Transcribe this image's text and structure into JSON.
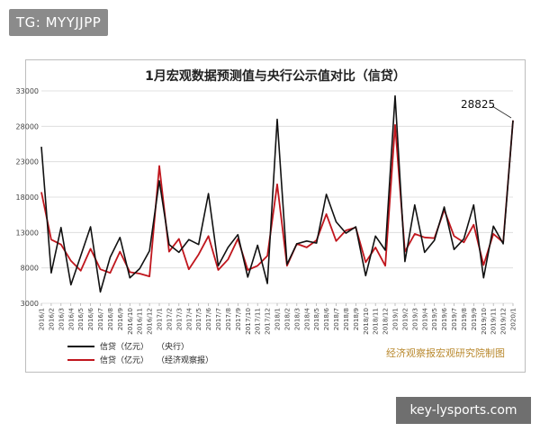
{
  "overlay": {
    "tag": "TG: MYYJJPP",
    "footer_site": "key-lysports.com"
  },
  "chart_data": {
    "type": "line",
    "title": "1月宏观数据预测值与央行公示值对比（信贷）",
    "source_note": "经济观察报宏观研究院制图",
    "annotation": "28825",
    "ylim": [
      3000,
      33000
    ],
    "yticks": [
      3000,
      8000,
      13000,
      18000,
      23000,
      28000,
      33000
    ],
    "xlabel": "",
    "ylabel": "",
    "legend_position": "bottom-left",
    "categories": [
      "2016/1",
      "2016/2",
      "2016/3",
      "2016/4",
      "2016/5",
      "2016/6",
      "2016/7",
      "2016/8",
      "2016/9",
      "2016/10",
      "2016/11",
      "2016/12",
      "2017/1",
      "2017/2",
      "2017/3",
      "2017/4",
      "2017/5",
      "2017/6",
      "2017/7",
      "2017/8",
      "2017/9",
      "2017/10",
      "2017/11",
      "2017/12",
      "2018/1",
      "2018/2",
      "2018/3",
      "2018/4",
      "2018/5",
      "2018/6",
      "2018/7",
      "2018/8",
      "2018/9",
      "2018/10",
      "2018/11",
      "2018/12",
      "2019/1",
      "2019/2",
      "2019/3",
      "2019/4",
      "2019/5",
      "2019/6",
      "2019/7",
      "2019/8",
      "2019/9",
      "2019/10",
      "2019/11",
      "2019/12",
      "2020/1"
    ],
    "series": [
      {
        "name": "信贷（亿元）",
        "source": "（央行）",
        "color": "#111111",
        "values": [
          25100,
          7300,
          13700,
          5600,
          9700,
          13800,
          4600,
          9500,
          12300,
          6600,
          7900,
          10400,
          20300,
          11300,
          10200,
          12000,
          11300,
          18500,
          8300,
          10900,
          12700,
          6700,
          11200,
          5800,
          29000,
          8500,
          11400,
          11800,
          11500,
          18400,
          14500,
          12900,
          13800,
          6900,
          12500,
          10500,
          32300,
          8900,
          16900,
          10200,
          11900,
          16600,
          10600,
          12100,
          16900,
          6600,
          13900,
          11400,
          28825
        ]
      },
      {
        "name": "信贷（亿元）",
        "source": "（经济观察报）",
        "color": "#c0161d",
        "values": [
          18700,
          12000,
          11300,
          9000,
          7600,
          10700,
          7800,
          7300,
          10300,
          7400,
          7200,
          6800,
          22400,
          10300,
          12100,
          7800,
          9900,
          12500,
          7700,
          9200,
          12100,
          7700,
          8300,
          9700,
          19800,
          8300,
          11400,
          10900,
          11900,
          15600,
          11800,
          13300,
          13700,
          8800,
          10900,
          8300,
          28200,
          10300,
          12800,
          12300,
          12200,
          16200,
          12500,
          11600,
          14100,
          8400,
          12800,
          11600,
          28825
        ]
      }
    ]
  }
}
